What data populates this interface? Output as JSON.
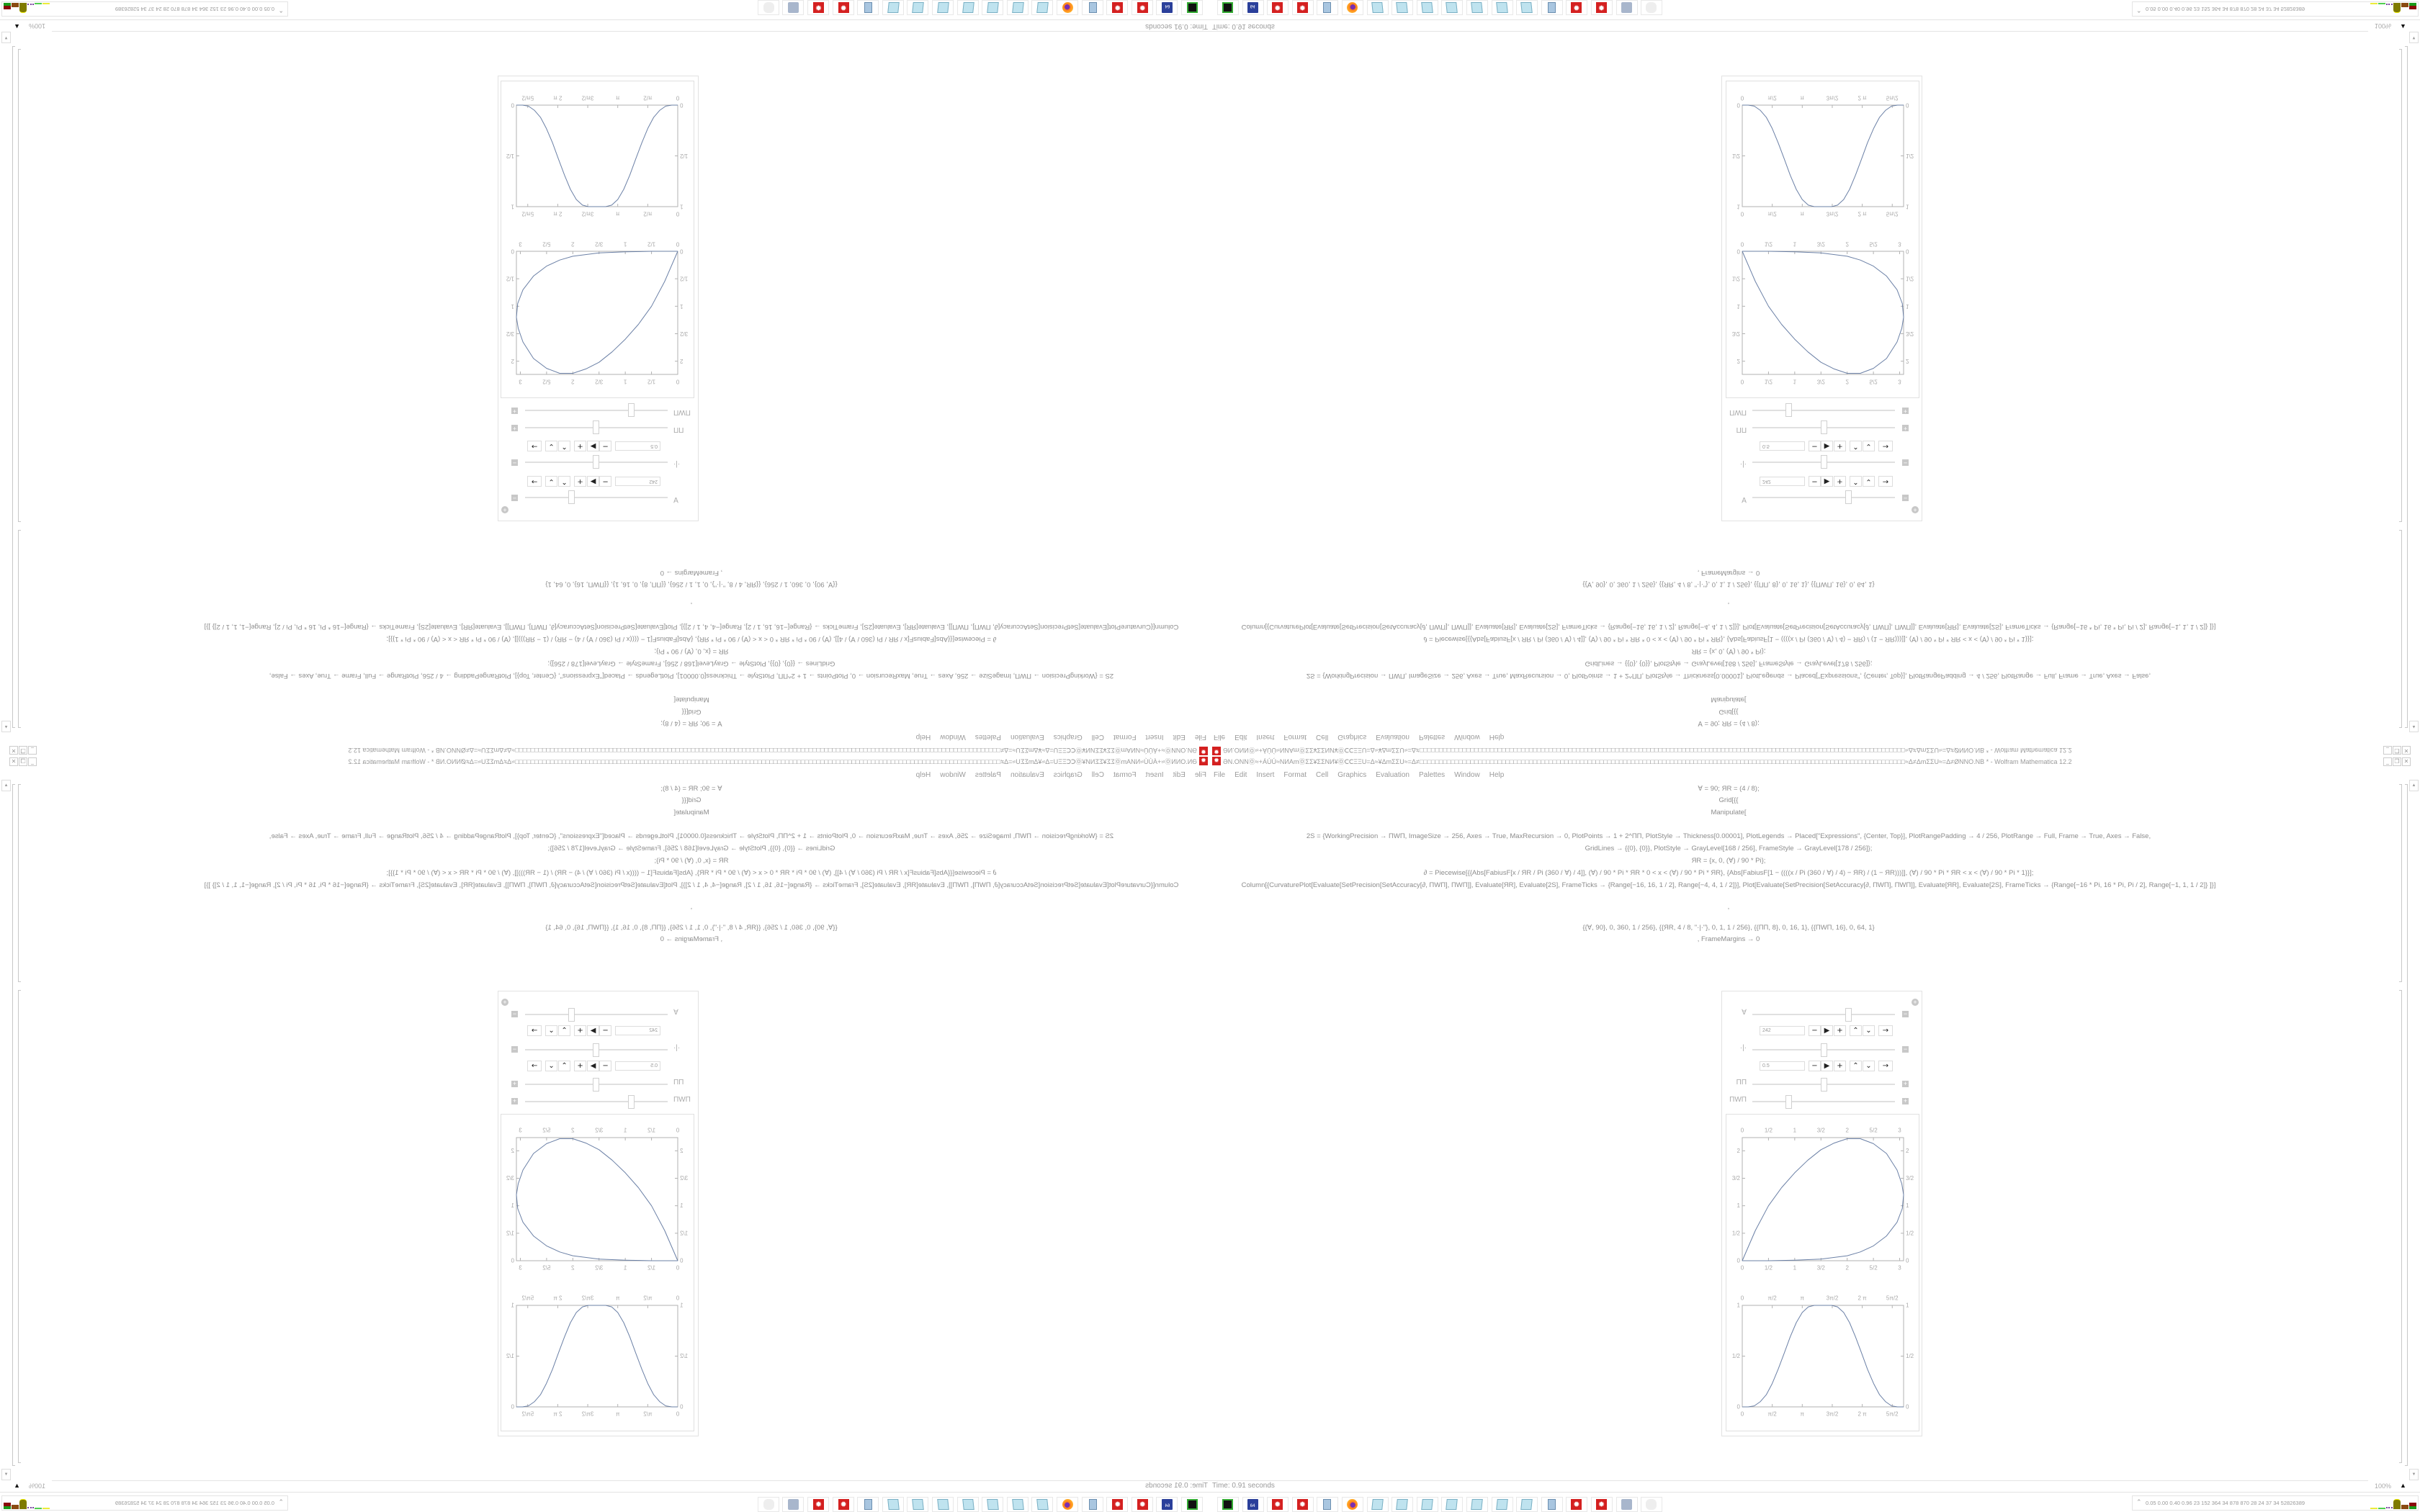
{
  "window": {
    "title": "ƏN.ONNⓄ≈+ÁÚÚ≈NИAmⓄΣΣ¥ΣΣNИ¥ⓄⅭⅭΞΞU=Δ≈¥ΔmΣΣU≈=Δ≠□□□□□□□□□□□□□□□□□□□□□□□□□□□□□□□□□□□□□□□□□□□□□□□□□□□□□□□□□□□□□□□□□□□□□□□□□□□□□□□□□□□□□□□□□□□□□□□□□□□□□□□□□□□□□□□□□□□□□□□□□□□□≈Δ≠ΔmΣΣU≈=Δ≠ØNNO.NB * - Wolfram Mathematica 12.2",
    "app_icon": "wolfram-icon",
    "controls": {
      "minimize": "_",
      "restore": "❐",
      "close": "✕"
    }
  },
  "menu": [
    "File",
    "Edit",
    "Insert",
    "Format",
    "Cell",
    "Graphics",
    "Evaluation",
    "Palettes",
    "Window",
    "Help"
  ],
  "code": [
    "Ɐ = 90; ЯR = (4 / 8);",
    "Grid[{{",
    "Manipulate[",
    "2S = {WorkingPrecision → ПWП, ImageSize → 256, Axes → True, MaxRecursion → 0, PlotPoints → 1 + 2^ПП, PlotStyle → Thickness[0.00001], PlotLegends → Placed[\"Expressions\", {Center, Top}], PlotRangePadding → 4 / 256, PlotRange → Full, Frame → True, Axes → False,",
    "GridLines → {{0}, {0}}, PlotStyle → GrayLevel[168 / 256], FrameStyle → GrayLevel[178 / 256]};",
    "ЯR = {x, 0, (Ɐ) / 90 * Pi};",
    "∂ = Piecewise[{{Abs[FabiusF[x / ЯR / Pi (360 / Ɐ) / 4]], (Ɐ) / 90 * Pi * ЯR * 0 < x < (Ɐ) / 90 * Pi * ЯR}, {Abs[FabiusF[1 − ((((x / Pi (360 / Ɐ) / 4) − ЯR) / (1 − ЯR)))]], (Ɐ) / 90 * Pi * ЯR < x < (Ɐ) / 90 * Pi * 1}}];",
    "Column[{CurvaturePlot[Evaluate[SetPrecision[SetAccuracy[∂, ПWП], ПWП]], Evaluate[ЯR], Evaluate[2S], FrameTicks → {Range[−16, 16, 1 / 2], Range[−4, 4, 1 / 2]}], Plot[Evaluate[SetPrecision[SetAccuracy[∂, ПWП], ПWП]], Evaluate[ЯR], Evaluate[2S], FrameTicks → {Range[−16 * Pi, 16 * Pi, Pi / 2], Range[−1, 1, 1 / 2]} ]}]",
    ",",
    "{{Ɐ, 90}, 0, 360, 1 / 256}, {{ЯR, 4 / 8, \"·|·\"}, 0, 1, 1 / 256}, {{ПП, 8}, 0, 16, 1}, {{ПWП, 16}, 0, 64, 1}",
    ", FrameMargins → 0"
  ],
  "manipulate": {
    "add_icon": "plus-circle-icon",
    "controls": [
      {
        "label": "Ɐ",
        "value_fraction": 0.672,
        "toggle": "−",
        "anim_value": "242"
      },
      {
        "label": "·|·",
        "value_fraction": 0.5,
        "toggle": "−",
        "anim_value": "0.5"
      },
      {
        "label": "ПП",
        "value_fraction": 0.5,
        "toggle": "+"
      },
      {
        "label": "ПWП",
        "value_fraction": 0.25,
        "toggle": "+"
      }
    ],
    "anim_buttons": [
      "−",
      "▶",
      "+",
      "⌃",
      "⌄",
      "→"
    ]
  },
  "plots": [
    {
      "type": "line",
      "curve_color": "#6b80a6",
      "frame_color": "#b2b2b2",
      "xlim": [
        0,
        3.075
      ],
      "ylim": [
        0,
        2.24
      ],
      "x_ticks": [
        {
          "v": 0,
          "l": "0"
        },
        {
          "v": 0.5,
          "l": "1/2"
        },
        {
          "v": 1,
          "l": "1"
        },
        {
          "v": 1.5,
          "l": "3/2"
        },
        {
          "v": 2,
          "l": "2"
        },
        {
          "v": 2.5,
          "l": "5/2"
        },
        {
          "v": 3,
          "l": "3"
        }
      ],
      "y_ticks": [
        {
          "v": 0,
          "l": "0"
        },
        {
          "v": 0.5,
          "l": "1/2"
        },
        {
          "v": 1,
          "l": "1"
        },
        {
          "v": 1.5,
          "l": "3/2"
        },
        {
          "v": 2,
          "l": "2"
        }
      ],
      "x": [
        0,
        0.25,
        0.5,
        0.75,
        1,
        1.25,
        1.5,
        1.75,
        2,
        2.25,
        2.5,
        2.75,
        2.95,
        3.04,
        3.075,
        3.05,
        2.95,
        2.75,
        2.5,
        2.25,
        2,
        1.5,
        1,
        0.5,
        0
      ],
      "y": [
        0,
        0.55,
        1.0,
        1.33,
        1.6,
        1.83,
        2.02,
        2.14,
        2.22,
        2.22,
        2.13,
        1.95,
        1.65,
        1.4,
        1.2,
        0.95,
        0.7,
        0.45,
        0.27,
        0.16,
        0.09,
        0.03,
        0.01,
        0,
        0
      ]
    },
    {
      "type": "line",
      "curve_color": "#6b80a6",
      "frame_color": "#b2b2b2",
      "xlim": [
        0,
        8.448
      ],
      "ylim": [
        0,
        1
      ],
      "x_ticks": [
        {
          "v": 0,
          "l": "0"
        },
        {
          "v": 1.5708,
          "l": "π/2"
        },
        {
          "v": 3.1416,
          "l": "π"
        },
        {
          "v": 4.7124,
          "l": "3π/2"
        },
        {
          "v": 6.2832,
          "l": "2 π"
        },
        {
          "v": 7.854,
          "l": "5π/2"
        }
      ],
      "y_ticks": [
        {
          "v": 0,
          "l": "0"
        },
        {
          "v": 0.5,
          "l": "1/2"
        },
        {
          "v": 1,
          "l": "1"
        }
      ],
      "x": [
        0,
        0.31,
        0.63,
        0.94,
        1.26,
        1.57,
        1.88,
        2.2,
        2.51,
        2.83,
        3.14,
        3.46,
        3.77,
        4.22,
        4.68,
        4.99,
        5.31,
        5.62,
        5.93,
        6.25,
        6.56,
        6.88,
        7.19,
        7.51,
        7.82,
        8.13,
        8.45
      ],
      "y": [
        0,
        0,
        0.01,
        0.05,
        0.12,
        0.23,
        0.37,
        0.53,
        0.69,
        0.83,
        0.93,
        0.985,
        1,
        1,
        1,
        0.985,
        0.93,
        0.83,
        0.69,
        0.53,
        0.37,
        0.23,
        0.12,
        0.05,
        0.01,
        0,
        0
      ]
    }
  ],
  "status": {
    "time": "Time: 0.91 seconds",
    "zoom": "100%"
  },
  "taskbar": {
    "icons": [
      "terminal-icon",
      "floppy-64-icon",
      "wolfram-icon",
      "wolfram-icon",
      "calculator-icon",
      "firefox-icon",
      "notepad-icon",
      "notepad-icon",
      "notepad-icon",
      "notepad-icon",
      "notepad-icon",
      "notepad-icon",
      "notepad-icon",
      "calculator-icon",
      "wolfram-icon",
      "wolfram-icon",
      "scroll-icon",
      "cat-icon"
    ],
    "stats": "0.05 0.00 0.40 0.96  23  152  364  34  878  870  28  24  37  34  52826389",
    "expand": "⌃"
  }
}
